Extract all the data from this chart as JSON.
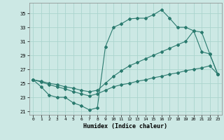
{
  "xlabel": "Humidex (Indice chaleur)",
  "xlim": [
    -0.5,
    23.5
  ],
  "ylim": [
    20.5,
    36.5
  ],
  "yticks": [
    21,
    23,
    25,
    27,
    29,
    31,
    33,
    35
  ],
  "xticks": [
    0,
    1,
    2,
    3,
    4,
    5,
    6,
    7,
    8,
    9,
    10,
    11,
    12,
    13,
    14,
    15,
    16,
    17,
    18,
    19,
    20,
    21,
    22,
    23
  ],
  "bg_color": "#cce8e4",
  "grid_color": "#aad4ce",
  "line_color": "#2a7a6e",
  "line1_y": [
    25.5,
    24.5,
    23.3,
    23.0,
    23.0,
    22.2,
    21.8,
    21.2,
    21.5,
    30.2,
    33.0,
    33.5,
    34.2,
    34.3,
    34.3,
    34.8,
    35.5,
    34.3,
    33.0,
    33.0,
    32.5,
    29.5,
    29.2,
    26.3
  ],
  "line2_y": [
    25.5,
    25.3,
    25.0,
    24.8,
    24.5,
    24.3,
    24.0,
    23.8,
    24.0,
    25.0,
    26.0,
    26.8,
    27.5,
    28.0,
    28.5,
    29.0,
    29.5,
    30.0,
    30.5,
    31.0,
    32.5,
    32.3,
    29.2,
    26.3
  ],
  "line3_y": [
    25.5,
    25.2,
    24.8,
    24.5,
    24.2,
    23.8,
    23.5,
    23.2,
    23.5,
    24.0,
    24.5,
    24.8,
    25.0,
    25.3,
    25.5,
    25.8,
    26.0,
    26.3,
    26.5,
    26.8,
    27.0,
    27.2,
    27.5,
    26.3
  ]
}
